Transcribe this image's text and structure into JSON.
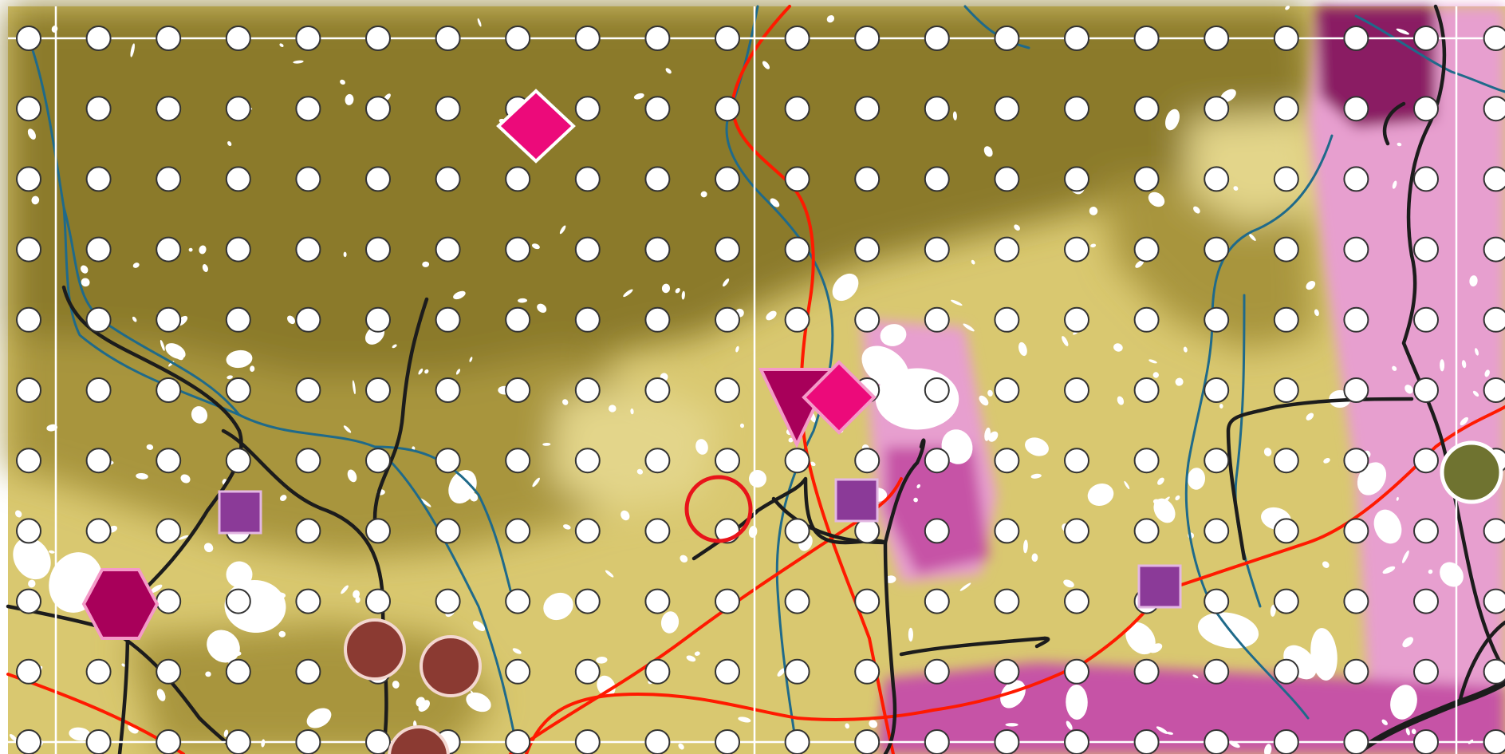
{
  "map": {
    "colors": {
      "background": "#ffffff",
      "zone_dark_olive": "#8b7a2b",
      "zone_mid_olive": "#a8953e",
      "zone_light_khaki": "#d9c870",
      "zone_pale": "#e3d58a",
      "zone_pink": "#e79fcf",
      "zone_magenta": "#c653a6",
      "zone_deep_plum": "#8a1a63",
      "urban_white": "#ffffff",
      "river_blue": "#1f6a8a",
      "road_red": "#ff1a00",
      "rail_black": "#1c1c1c",
      "grid_line": "#ffffff",
      "grid_dot_fill": "#ffffff",
      "grid_dot_stroke": "#333333",
      "highlight_ring": "#e8141a"
    },
    "grid": {
      "columns": 22,
      "rows": 11
    },
    "markers": [
      {
        "type": "diamond",
        "color": "#ec0a7a"
      },
      {
        "type": "diamond",
        "color": "#ec0a7a"
      },
      {
        "type": "triangle-down",
        "color": "#a8005a"
      },
      {
        "type": "square",
        "color": "#8b3a98"
      },
      {
        "type": "square",
        "color": "#8b3a98"
      },
      {
        "type": "square",
        "color": "#8b3a98"
      },
      {
        "type": "hexagon",
        "color": "#a8005a"
      },
      {
        "type": "circle",
        "color": "#8b3a32"
      },
      {
        "type": "circle",
        "color": "#8b3a32"
      },
      {
        "type": "circle",
        "color": "#8b3a32"
      },
      {
        "type": "circle",
        "color": "#6f7330"
      },
      {
        "type": "highlight-ring",
        "color": "#e8141a"
      }
    ]
  }
}
